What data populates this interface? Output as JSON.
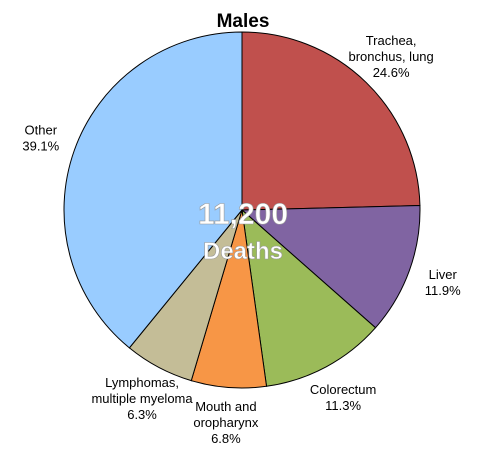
{
  "chart_data": {
    "type": "pie",
    "title": "Males",
    "center_label": [
      "11,200",
      "Deaths"
    ],
    "categories": [
      "Trachea,\nbronchus, lung",
      "Liver",
      "Colorectum",
      "Mouth and\noropharynx",
      "Lymphomas,\nmultiple myeloma",
      "Other"
    ],
    "values": [
      24.6,
      11.9,
      11.3,
      6.8,
      6.3,
      39.1
    ],
    "value_labels": [
      "24.6%",
      "11.9%",
      "11.3%",
      "6.8%",
      "6.3%",
      "39.1%"
    ],
    "colors": [
      "#c0504d",
      "#8064a2",
      "#9bbb59",
      "#f79646",
      "#c4bd97",
      "#99ccff"
    ]
  }
}
